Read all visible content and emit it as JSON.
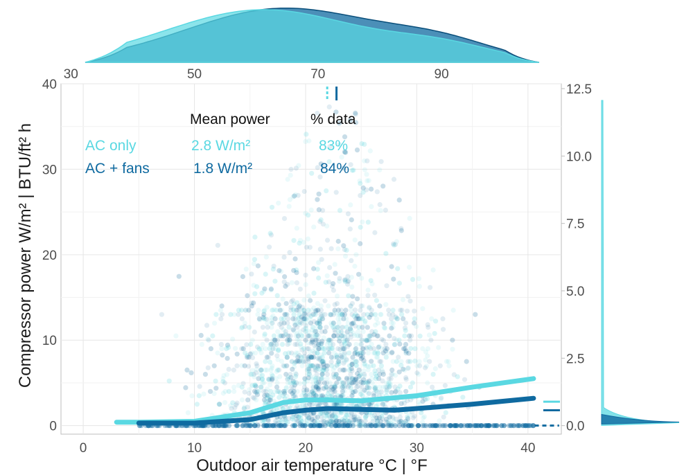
{
  "chart_data": {
    "type": "scatter",
    "title": "",
    "xlabel": "Outdoor air temperature °C | °F",
    "ylabel": "Compressor power W/m² | BTU/ft² h",
    "xlim": [
      -2,
      43
    ],
    "ylim": [
      -1,
      40
    ],
    "x_ticks": [
      "0",
      "10",
      "20",
      "30",
      "40"
    ],
    "y_ticks": [
      "0",
      "10",
      "20",
      "30",
      "40"
    ],
    "top_axis_ticks": [
      "30",
      "50",
      "70",
      "90"
    ],
    "right_axis_ticks": [
      "0.0",
      "2.5",
      "5.0",
      "7.5",
      "10.0",
      "12.5"
    ],
    "grid": true,
    "colors": {
      "ac_only": "#5ad8e2",
      "ac_fans": "#0f6aa0"
    },
    "series": [
      {
        "name": "AC only",
        "key": "ac_only",
        "mean_power": "2.8 W/m²",
        "pct_data": "83%",
        "median_outdoor_temp_f": 71.5,
        "smooth_x": [
          3,
          5,
          10,
          15,
          18,
          20,
          22,
          25,
          30,
          35,
          40.5
        ],
        "smooth_y": [
          0.4,
          0.4,
          0.5,
          1.5,
          2.7,
          3.0,
          3.0,
          2.9,
          3.5,
          4.5,
          5.5
        ],
        "mean_y": 2.8
      },
      {
        "name": "AC + fans",
        "key": "ac_fans",
        "mean_power": "1.8 W/m²",
        "pct_data": "84%",
        "median_outdoor_temp_f": 73.0,
        "smooth_x": [
          5,
          10,
          15,
          18,
          20,
          22,
          25,
          28,
          30,
          35,
          40.5
        ],
        "smooth_y": [
          0.3,
          0.3,
          0.7,
          1.5,
          1.8,
          2.0,
          1.9,
          1.8,
          2.0,
          2.5,
          3.2
        ],
        "mean_y": 1.8
      }
    ]
  },
  "annotation": {
    "header_mean_power": "Mean power",
    "header_pct_data": "% data"
  }
}
